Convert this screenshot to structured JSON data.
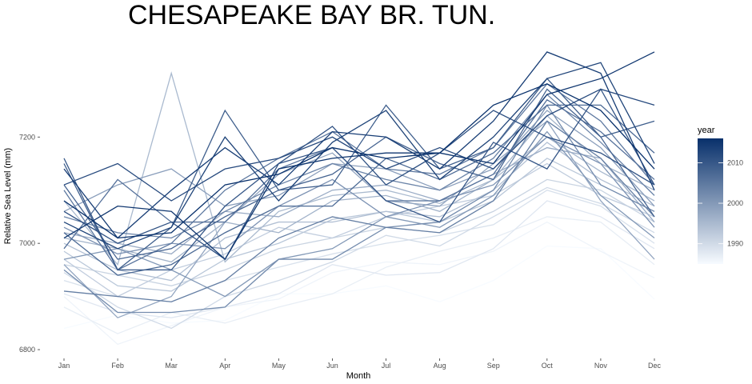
{
  "chart_data": {
    "type": "line",
    "title": "CHESAPEAKE BAY BR. TUN.",
    "xlabel": "Month",
    "ylabel": "Relative Sea Level (mm)",
    "categories": [
      "Jan",
      "Feb",
      "Mar",
      "Apr",
      "May",
      "Jun",
      "Jul",
      "Aug",
      "Sep",
      "Oct",
      "Nov",
      "Dec"
    ],
    "ylim": [
      6785,
      7375
    ],
    "yticks": [
      6800,
      7000,
      7200
    ],
    "grid": false,
    "legend": {
      "title": "year",
      "placement": "right",
      "range": [
        1985,
        2016
      ],
      "ticks": [
        1990,
        2000,
        2010
      ],
      "color_low": "#f7fbff",
      "color_high": "#08306b"
    },
    "series": [
      {
        "year": 1985,
        "values": [
          6840,
          6865,
          6850,
          6855,
          6905,
          6905,
          6920,
          6890,
          6930,
          6995,
          6990,
          6895
        ]
      },
      {
        "year": 1986,
        "values": [
          6900,
          6810,
          6845,
          6880,
          6895,
          6945,
          6965,
          6960,
          6985,
          7040,
          6985,
          6935
        ]
      },
      {
        "year": 1987,
        "values": [
          6880,
          6830,
          6870,
          6850,
          6880,
          6905,
          6955,
          6985,
          7010,
          7050,
          7040,
          6960
        ]
      },
      {
        "year": 1988,
        "values": [
          6905,
          6870,
          6860,
          6880,
          6905,
          6960,
          6940,
          6945,
          6990,
          7080,
          7050,
          6990
        ]
      },
      {
        "year": 1989,
        "values": [
          6930,
          6900,
          6890,
          6930,
          6955,
          6980,
          7000,
          7015,
          7035,
          7100,
          7070,
          7000
        ]
      },
      {
        "year": 1990,
        "values": [
          6945,
          6880,
          6840,
          6900,
          6930,
          6965,
          7015,
          6995,
          7050,
          7105,
          7075,
          7020
        ]
      },
      {
        "year": 1991,
        "values": [
          6960,
          6940,
          6920,
          6950,
          6990,
          7010,
          7030,
          7020,
          7060,
          7120,
          7100,
          7040
        ]
      },
      {
        "year": 1992,
        "values": [
          6970,
          6900,
          6950,
          6980,
          7030,
          7010,
          7050,
          7070,
          7090,
          7150,
          7090,
          7050
        ]
      },
      {
        "year": 1993,
        "values": [
          6985,
          6920,
          6910,
          6970,
          7000,
          7045,
          7060,
          7040,
          7080,
          7160,
          7110,
          7060
        ]
      },
      {
        "year": 1994,
        "values": [
          7000,
          6950,
          6930,
          7010,
          7040,
          7040,
          7060,
          7050,
          7100,
          7190,
          7120,
          7070
        ]
      },
      {
        "year": 1995,
        "values": [
          7080,
          6960,
          7320,
          6965,
          7060,
          7090,
          7100,
          7075,
          7120,
          7200,
          7135,
          7080
        ]
      },
      {
        "year": 1996,
        "values": [
          7010,
          6990,
          6965,
          7040,
          7020,
          7080,
          7090,
          7060,
          7120,
          7240,
          7150,
          7100
        ]
      },
      {
        "year": 1997,
        "values": [
          7020,
          7000,
          6980,
          7060,
          7050,
          7100,
          7110,
          7080,
          7130,
          7180,
          7160,
          7040
        ]
      },
      {
        "year": 1998,
        "values": [
          6960,
          6860,
          6900,
          7040,
          7130,
          7170,
          7080,
          7070,
          7150,
          7230,
          7080,
          6970
        ]
      },
      {
        "year": 1999,
        "values": [
          7060,
          7110,
          7140,
          7070,
          7090,
          7150,
          7140,
          7100,
          7140,
          7250,
          7180,
          7070
        ]
      },
      {
        "year": 2000,
        "values": [
          6970,
          6990,
          6950,
          6900,
          6970,
          6990,
          7050,
          7030,
          7090,
          7210,
          7090,
          7010
        ]
      },
      {
        "year": 2001,
        "values": [
          7030,
          6980,
          7000,
          6990,
          7070,
          7120,
          7050,
          7080,
          7110,
          7200,
          7150,
          7030
        ]
      },
      {
        "year": 2002,
        "values": [
          6950,
          6870,
          6870,
          6880,
          6970,
          6970,
          7030,
          7040,
          7100,
          7260,
          7110,
          7060
        ]
      },
      {
        "year": 2003,
        "values": [
          7050,
          7020,
          7010,
          7060,
          7110,
          7150,
          7120,
          7100,
          7160,
          7280,
          7190,
          7090
        ]
      },
      {
        "year": 2004,
        "values": [
          6910,
          6900,
          6890,
          6930,
          7010,
          7050,
          7030,
          7020,
          7080,
          7230,
          7160,
          7050
        ]
      },
      {
        "year": 2005,
        "values": [
          7100,
          6950,
          7000,
          7100,
          7160,
          7210,
          7140,
          7130,
          7180,
          7300,
          7230,
          7110
        ]
      },
      {
        "year": 2006,
        "values": [
          6990,
          7120,
          7040,
          7040,
          7140,
          7180,
          7080,
          7080,
          7130,
          7270,
          7210,
          7120
        ]
      },
      {
        "year": 2007,
        "values": [
          7020,
          6940,
          6960,
          7020,
          7070,
          7070,
          7160,
          7120,
          7170,
          7260,
          7260,
          7170
        ]
      },
      {
        "year": 2008,
        "values": [
          7110,
          6970,
          6990,
          7050,
          7100,
          7130,
          7200,
          7150,
          7120,
          7290,
          7200,
          7050
        ]
      },
      {
        "year": 2009,
        "values": [
          7150,
          6950,
          7030,
          7250,
          7100,
          7110,
          7260,
          7140,
          7180,
          7310,
          7200,
          7230
        ]
      },
      {
        "year": 2010,
        "values": [
          7160,
          6950,
          6950,
          7070,
          7150,
          7180,
          7080,
          7040,
          7190,
          7140,
          7290,
          7110
        ]
      },
      {
        "year": 2011,
        "values": [
          7060,
          7000,
          7040,
          6970,
          7150,
          7220,
          7110,
          7170,
          7250,
          7200,
          7170,
          7110
        ]
      },
      {
        "year": 2012,
        "values": [
          7110,
          7150,
          7080,
          7140,
          7160,
          7200,
          7140,
          7180,
          7140,
          7240,
          7290,
          7260
        ]
      },
      {
        "year": 2013,
        "values": [
          7040,
          6990,
          7030,
          7200,
          7080,
          7190,
          7250,
          7120,
          7200,
          7310,
          7340,
          7150
        ]
      },
      {
        "year": 2014,
        "values": [
          7140,
          7010,
          7100,
          7180,
          7110,
          7210,
          7200,
          7140,
          7230,
          7360,
          7320,
          7100
        ]
      },
      {
        "year": 2015,
        "values": [
          7010,
          7070,
          7060,
          6970,
          7140,
          7160,
          7170,
          7170,
          7150,
          7280,
          7310,
          7360
        ]
      },
      {
        "year": 2016,
        "values": [
          7080,
          7010,
          7020,
          7110,
          7130,
          7180,
          7160,
          7170,
          7260,
          7300,
          7250,
          7140
        ]
      }
    ]
  }
}
